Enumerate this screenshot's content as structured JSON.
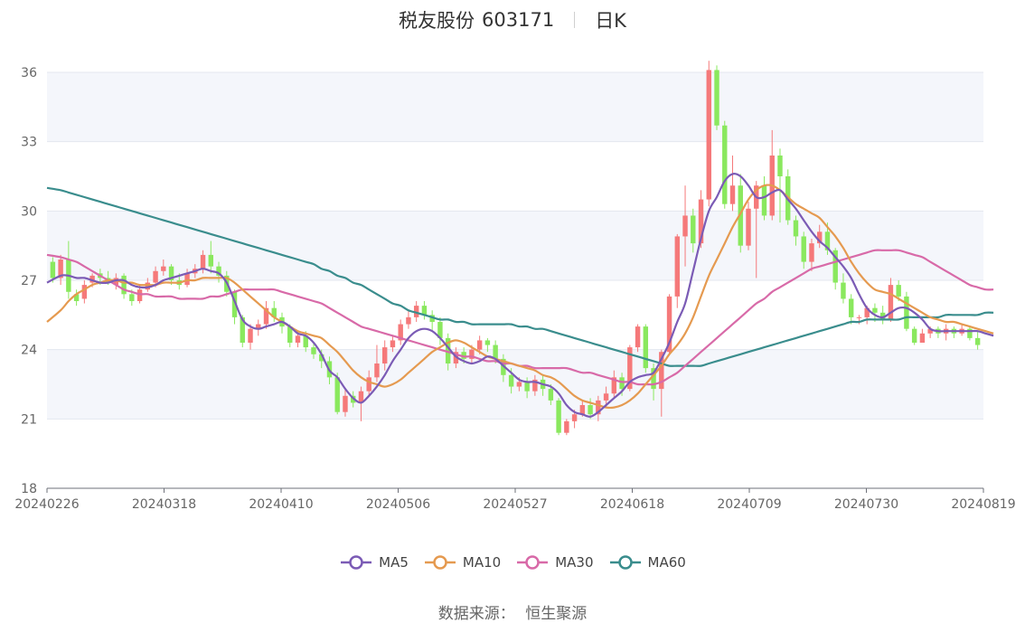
{
  "title": {
    "name": "税友股份",
    "code": "603171",
    "period": "日K"
  },
  "source": {
    "label": "数据来源：",
    "value": "恒生聚源"
  },
  "colors": {
    "up": "#f5797a",
    "down": "#8ae85e",
    "ma5": "#7b5bb5",
    "ma10": "#e59a50",
    "ma30": "#d86aa8",
    "ma60": "#3a8d8d",
    "grid": "#e3e7ef",
    "band": "#f4f6fb"
  },
  "chart_data": {
    "type": "candlestick",
    "y_ticks": [
      "18",
      "21",
      "24",
      "27",
      "30",
      "33",
      "36"
    ],
    "ylim": [
      18,
      36
    ],
    "x_tick_labels": [
      "20240226",
      "20240318",
      "20240410",
      "20240506",
      "20240527",
      "20240618",
      "20240709",
      "20240730",
      "20240819"
    ],
    "legend": [
      {
        "key": "ma5",
        "label": "MA5"
      },
      {
        "key": "ma10",
        "label": "MA10"
      },
      {
        "key": "ma30",
        "label": "MA30"
      },
      {
        "key": "ma60",
        "label": "MA60"
      }
    ],
    "candles": [
      [
        27.8,
        27.1,
        28.0,
        26.9
      ],
      [
        27.1,
        27.9,
        28.1,
        26.8
      ],
      [
        27.9,
        26.5,
        28.7,
        26.2
      ],
      [
        26.4,
        26.1,
        26.6,
        25.9
      ],
      [
        26.2,
        26.8,
        27.0,
        26.0
      ],
      [
        26.9,
        27.2,
        27.3,
        26.7
      ],
      [
        27.3,
        27.1,
        27.5,
        26.8
      ],
      [
        27.1,
        26.9,
        27.4,
        26.8
      ],
      [
        26.8,
        27.1,
        27.3,
        26.6
      ],
      [
        27.2,
        26.4,
        27.3,
        26.2
      ],
      [
        26.4,
        26.1,
        26.6,
        25.9
      ],
      [
        26.1,
        26.6,
        26.8,
        26.0
      ],
      [
        26.6,
        26.9,
        27.1,
        26.5
      ],
      [
        26.9,
        27.4,
        27.6,
        26.7
      ],
      [
        27.4,
        27.6,
        27.9,
        27.2
      ],
      [
        27.6,
        27.0,
        27.7,
        26.8
      ],
      [
        27.0,
        26.8,
        27.3,
        26.6
      ],
      [
        26.8,
        27.3,
        27.5,
        26.7
      ],
      [
        27.3,
        27.5,
        27.7,
        27.1
      ],
      [
        27.5,
        28.1,
        28.3,
        27.3
      ],
      [
        28.1,
        27.6,
        28.7,
        27.3
      ],
      [
        27.6,
        27.2,
        27.8,
        26.9
      ],
      [
        27.2,
        26.5,
        27.4,
        26.3
      ],
      [
        26.5,
        25.4,
        26.6,
        25.1
      ],
      [
        25.4,
        24.3,
        25.5,
        24.1
      ],
      [
        24.3,
        24.9,
        25.1,
        24.0
      ],
      [
        24.9,
        25.1,
        25.3,
        24.6
      ],
      [
        25.1,
        25.8,
        26.1,
        24.9
      ],
      [
        25.8,
        25.4,
        26.1,
        25.2
      ],
      [
        25.4,
        25.0,
        25.6,
        24.7
      ],
      [
        25.0,
        24.3,
        25.1,
        24.1
      ],
      [
        24.3,
        24.6,
        24.8,
        24.1
      ],
      [
        24.6,
        24.1,
        24.8,
        23.9
      ],
      [
        24.1,
        23.8,
        24.3,
        23.6
      ],
      [
        23.8,
        23.5,
        24.0,
        23.2
      ],
      [
        23.5,
        22.8,
        23.7,
        22.5
      ],
      [
        22.8,
        21.3,
        23.0,
        21.2
      ],
      [
        21.3,
        22.0,
        22.3,
        21.1
      ],
      [
        22.0,
        21.7,
        22.2,
        21.5
      ],
      [
        21.7,
        22.2,
        22.4,
        20.9
      ],
      [
        22.2,
        22.8,
        23.1,
        22.0
      ],
      [
        22.8,
        23.4,
        24.2,
        22.6
      ],
      [
        23.4,
        24.1,
        24.4,
        23.1
      ],
      [
        24.1,
        24.4,
        24.6,
        23.9
      ],
      [
        24.4,
        25.1,
        25.3,
        24.2
      ],
      [
        25.1,
        25.4,
        25.7,
        24.9
      ],
      [
        25.4,
        25.9,
        26.1,
        25.2
      ],
      [
        25.9,
        25.5,
        26.1,
        25.3
      ],
      [
        25.5,
        25.2,
        25.7,
        24.8
      ],
      [
        25.2,
        24.5,
        25.4,
        24.2
      ],
      [
        24.5,
        23.4,
        24.7,
        23.1
      ],
      [
        23.4,
        23.9,
        24.1,
        23.2
      ],
      [
        23.9,
        23.6,
        24.1,
        23.4
      ],
      [
        23.6,
        24.0,
        24.2,
        23.4
      ],
      [
        24.0,
        24.4,
        24.6,
        23.8
      ],
      [
        24.4,
        24.2,
        24.5,
        23.9
      ],
      [
        24.2,
        23.6,
        24.4,
        23.4
      ],
      [
        23.6,
        22.9,
        23.8,
        22.6
      ],
      [
        22.9,
        22.4,
        23.2,
        22.1
      ],
      [
        22.4,
        22.6,
        22.8,
        22.2
      ],
      [
        22.6,
        22.2,
        22.8,
        21.9
      ],
      [
        22.2,
        22.7,
        22.9,
        22.0
      ],
      [
        22.7,
        22.3,
        22.9,
        22.0
      ],
      [
        22.3,
        21.8,
        22.5,
        21.6
      ],
      [
        21.8,
        20.4,
        21.9,
        20.3
      ],
      [
        20.4,
        20.9,
        21.0,
        20.3
      ],
      [
        20.9,
        21.2,
        21.4,
        20.6
      ],
      [
        21.2,
        21.6,
        21.8,
        21.1
      ],
      [
        21.6,
        21.2,
        21.9,
        21.0
      ],
      [
        21.2,
        21.8,
        22.0,
        20.9
      ],
      [
        21.8,
        22.1,
        22.4,
        21.5
      ],
      [
        22.1,
        22.8,
        23.1,
        21.9
      ],
      [
        22.8,
        22.3,
        23.0,
        22.0
      ],
      [
        22.3,
        24.1,
        24.2,
        22.2
      ],
      [
        24.1,
        25.0,
        25.1,
        23.9
      ],
      [
        25.0,
        23.2,
        25.1,
        23.0
      ],
      [
        23.2,
        22.3,
        23.4,
        21.8
      ],
      [
        22.3,
        23.9,
        24.0,
        21.1
      ],
      [
        23.9,
        26.3,
        26.4,
        23.8
      ],
      [
        26.3,
        28.9,
        29.0,
        25.8
      ],
      [
        28.9,
        29.8,
        31.1,
        27.6
      ],
      [
        29.8,
        28.6,
        30.1,
        28.2
      ],
      [
        28.6,
        30.5,
        30.9,
        28.4
      ],
      [
        30.5,
        36.1,
        36.5,
        30.2
      ],
      [
        36.1,
        33.7,
        36.3,
        33.5
      ],
      [
        33.7,
        30.3,
        33.9,
        30.1
      ],
      [
        30.3,
        31.1,
        32.4,
        30.0
      ],
      [
        31.1,
        28.5,
        31.6,
        28.2
      ],
      [
        28.5,
        30.1,
        30.4,
        28.3
      ],
      [
        30.1,
        31.1,
        31.3,
        27.1
      ],
      [
        31.1,
        29.8,
        31.5,
        29.6
      ],
      [
        29.8,
        32.4,
        33.5,
        29.6
      ],
      [
        32.4,
        31.5,
        32.7,
        29.5
      ],
      [
        31.5,
        29.6,
        31.8,
        29.4
      ],
      [
        29.6,
        28.9,
        29.8,
        28.5
      ],
      [
        28.9,
        27.8,
        29.1,
        27.5
      ],
      [
        27.8,
        28.6,
        28.8,
        27.4
      ],
      [
        28.6,
        29.1,
        29.4,
        28.4
      ],
      [
        29.1,
        28.3,
        29.5,
        28.1
      ],
      [
        28.3,
        26.9,
        28.4,
        26.6
      ],
      [
        26.9,
        26.2,
        27.3,
        26.0
      ],
      [
        26.2,
        25.4,
        26.4,
        25.1
      ],
      [
        25.4,
        25.4,
        25.5,
        25.1
      ],
      [
        25.4,
        25.8,
        25.9,
        25.1
      ],
      [
        25.8,
        25.6,
        26.0,
        25.2
      ],
      [
        25.6,
        25.3,
        25.9,
        25.1
      ],
      [
        25.3,
        26.8,
        27.1,
        25.2
      ],
      [
        26.8,
        26.3,
        27.0,
        26.1
      ],
      [
        26.3,
        24.9,
        26.5,
        24.8
      ],
      [
        24.9,
        24.3,
        25.0,
        24.2
      ],
      [
        24.3,
        24.7,
        24.9,
        24.3
      ],
      [
        24.7,
        24.9,
        25.0,
        24.5
      ],
      [
        24.9,
        24.7,
        25.0,
        24.5
      ],
      [
        24.7,
        24.9,
        25.1,
        24.4
      ],
      [
        24.9,
        24.7,
        25.0,
        24.5
      ],
      [
        24.7,
        24.9,
        25.1,
        24.6
      ],
      [
        24.9,
        24.5,
        25.0,
        24.4
      ],
      [
        24.5,
        24.2,
        24.8,
        24.0
      ]
    ],
    "ma5": [
      26.9,
      27.2,
      27.2,
      27.1,
      27.1,
      27.0,
      26.9,
      26.9,
      27.0,
      27.0,
      26.8,
      26.7,
      26.7,
      26.8,
      27.0,
      27.1,
      27.2,
      27.3,
      27.4,
      27.5,
      27.4,
      27.3,
      26.9,
      26.1,
      25.3,
      25.0,
      24.9,
      25.0,
      25.1,
      25.2,
      25.0,
      24.7,
      24.6,
      24.3,
      23.8,
      23.1,
      22.8,
      22.3,
      21.9,
      21.7,
      22.0,
      22.4,
      22.9,
      23.5,
      24.0,
      24.5,
      24.8,
      24.9,
      24.8,
      24.5,
      24.1,
      23.7,
      23.5,
      23.4,
      23.5,
      23.7,
      23.6,
      23.3,
      23.0,
      22.7,
      22.6,
      22.6,
      22.5,
      22.4,
      22.1,
      21.6,
      21.3,
      21.2,
      21.1,
      21.3,
      21.6,
      21.9,
      22.2,
      22.6,
      22.8,
      22.9,
      23.0,
      23.6,
      24.3,
      25.2,
      26.0,
      27.4,
      28.8,
      30.0,
      30.6,
      31.3,
      31.6,
      31.5,
      31.1,
      30.6,
      30.6,
      30.8,
      30.9,
      30.5,
      30.1,
      29.6,
      29.1,
      28.7,
      28.4,
      28.0,
      27.6,
      27.1,
      26.4,
      25.8,
      25.5,
      25.4,
      25.6,
      25.8,
      25.8,
      25.6,
      25.3,
      24.9,
      24.8,
      24.8,
      24.8,
      24.8,
      24.8,
      24.8,
      24.7,
      24.6
    ],
    "ma10": [
      25.2,
      25.7,
      26.1,
      26.4,
      26.6,
      26.8,
      26.9,
      27.0,
      27.0,
      26.9,
      26.9,
      26.8,
      26.8,
      26.8,
      26.9,
      26.9,
      26.9,
      27.0,
      27.0,
      27.1,
      27.1,
      27.1,
      27.1,
      26.9,
      26.6,
      26.3,
      26.0,
      25.7,
      25.4,
      25.2,
      25.0,
      24.8,
      24.7,
      24.6,
      24.5,
      24.2,
      23.9,
      23.5,
      23.1,
      22.8,
      22.6,
      22.5,
      22.4,
      22.5,
      22.7,
      23.0,
      23.3,
      23.6,
      23.9,
      24.1,
      24.3,
      24.4,
      24.3,
      24.1,
      23.9,
      23.7,
      23.6,
      23.5,
      23.4,
      23.3,
      23.2,
      23.1,
      22.9,
      22.8,
      22.6,
      22.3,
      22.0,
      21.8,
      21.7,
      21.6,
      21.5,
      21.5,
      21.6,
      21.8,
      22.1,
      22.5,
      22.9,
      23.3,
      23.8,
      24.2,
      24.7,
      25.4,
      26.3,
      27.2,
      27.9,
      28.6,
      29.3,
      29.9,
      30.5,
      30.9,
      31.1,
      31.1,
      30.9,
      30.6,
      30.3,
      30.1,
      29.9,
      29.7,
      29.3,
      28.9,
      28.4,
      27.8,
      27.3,
      26.9,
      26.6,
      26.5,
      26.4,
      26.2,
      26.0,
      25.8,
      25.6,
      25.4,
      25.3,
      25.2,
      25.2,
      25.1,
      25.0,
      24.9,
      24.8,
      24.7
    ],
    "ma30": [
      28.1,
      28.0,
      27.9,
      27.8,
      27.6,
      27.4,
      27.2,
      27.0,
      26.8,
      26.6,
      26.5,
      26.4,
      26.4,
      26.3,
      26.3,
      26.3,
      26.2,
      26.2,
      26.2,
      26.2,
      26.3,
      26.3,
      26.4,
      26.5,
      26.6,
      26.6,
      26.6,
      26.6,
      26.6,
      26.5,
      26.4,
      26.3,
      26.2,
      26.1,
      26.0,
      25.8,
      25.6,
      25.4,
      25.2,
      25.0,
      24.9,
      24.8,
      24.7,
      24.6,
      24.5,
      24.4,
      24.3,
      24.2,
      24.1,
      24.0,
      23.9,
      23.8,
      23.7,
      23.7,
      23.6,
      23.5,
      23.5,
      23.4,
      23.4,
      23.3,
      23.3,
      23.2,
      23.2,
      23.2,
      23.2,
      23.2,
      23.1,
      23.0,
      23.0,
      22.9,
      22.8,
      22.7,
      22.6,
      22.6,
      22.5,
      22.5,
      22.5,
      22.6,
      22.8,
      23.0,
      23.3,
      23.6,
      23.9,
      24.2,
      24.5,
      24.8,
      25.1,
      25.4,
      25.7,
      26.0,
      26.2,
      26.5,
      26.7,
      26.9,
      27.1,
      27.3,
      27.5,
      27.6,
      27.7,
      27.8,
      27.9,
      28.0,
      28.1,
      28.2,
      28.3,
      28.3,
      28.3,
      28.3,
      28.2,
      28.1,
      28.0,
      27.8,
      27.6,
      27.4,
      27.2,
      27.0,
      26.8,
      26.7,
      26.6,
      26.6
    ],
    "ma60": [
      31.0,
      30.9,
      30.8,
      30.7,
      30.6,
      30.5,
      30.4,
      30.3,
      30.2,
      30.1,
      30.0,
      29.9,
      29.8,
      29.7,
      29.6,
      29.5,
      29.4,
      29.3,
      29.2,
      29.1,
      29.0,
      28.9,
      28.8,
      28.7,
      28.6,
      28.5,
      28.4,
      28.3,
      28.2,
      28.1,
      28.0,
      27.9,
      27.8,
      27.7,
      27.5,
      27.4,
      27.2,
      27.1,
      26.9,
      26.8,
      26.6,
      26.4,
      26.2,
      26.0,
      25.9,
      25.7,
      25.6,
      25.5,
      25.4,
      25.3,
      25.3,
      25.2,
      25.2,
      25.1,
      25.1,
      25.1,
      25.1,
      25.1,
      25.1,
      25.0,
      25.0,
      24.9,
      24.9,
      24.8,
      24.7,
      24.6,
      24.5,
      24.4,
      24.3,
      24.2,
      24.1,
      24.0,
      23.9,
      23.8,
      23.7,
      23.6,
      23.5,
      23.4,
      23.3,
      23.3,
      23.3,
      23.3,
      23.3,
      23.4,
      23.5,
      23.6,
      23.7,
      23.8,
      23.9,
      24.0,
      24.1,
      24.2,
      24.3,
      24.4,
      24.5,
      24.6,
      24.7,
      24.8,
      24.9,
      25.0,
      25.1,
      25.2,
      25.2,
      25.3,
      25.3,
      25.3,
      25.3,
      25.3,
      25.4,
      25.4,
      25.4,
      25.4,
      25.4,
      25.5,
      25.5,
      25.5,
      25.5,
      25.5,
      25.6,
      25.6
    ]
  }
}
